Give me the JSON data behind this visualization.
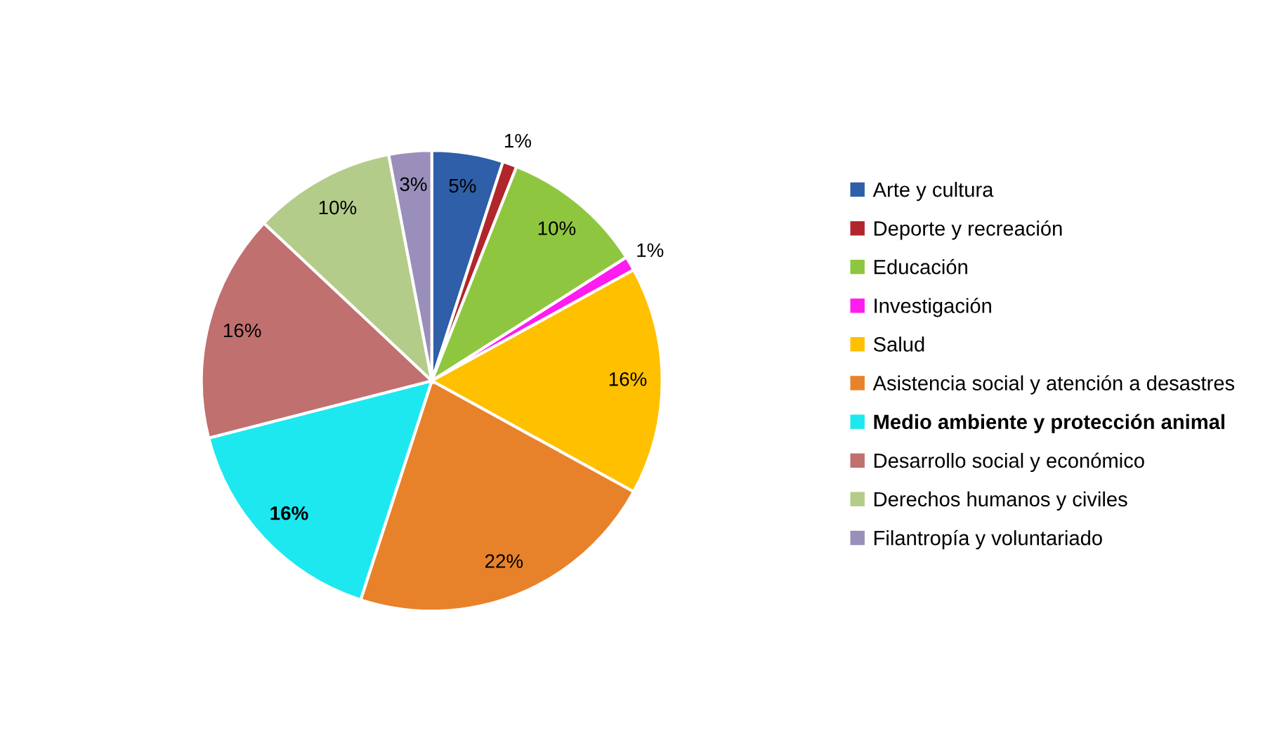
{
  "chart_data": {
    "type": "pie",
    "categories": [
      "Arte y cultura",
      "Deporte y recreación",
      "Educación",
      "Investigación",
      "Salud",
      "Asistencia social y atención a desastres",
      "Medio ambiente y protección animal",
      "Desarrollo social y económico",
      "Derechos humanos y civiles",
      "Filantropía y voluntariado"
    ],
    "values": [
      5,
      1,
      10,
      1,
      16,
      22,
      16,
      16,
      10,
      3
    ],
    "colors": [
      "#2e5fa8",
      "#b0262c",
      "#8fc640",
      "#ff1cf0",
      "#ffc000",
      "#e8822a",
      "#1de8f0",
      "#c0706f",
      "#b3cc8a",
      "#9a8fba"
    ],
    "value_labels": [
      "5%",
      "1%",
      "10%",
      "1%",
      "16%",
      "22%",
      "16%",
      "16%",
      "10%",
      "3%"
    ],
    "legend": "right"
  }
}
